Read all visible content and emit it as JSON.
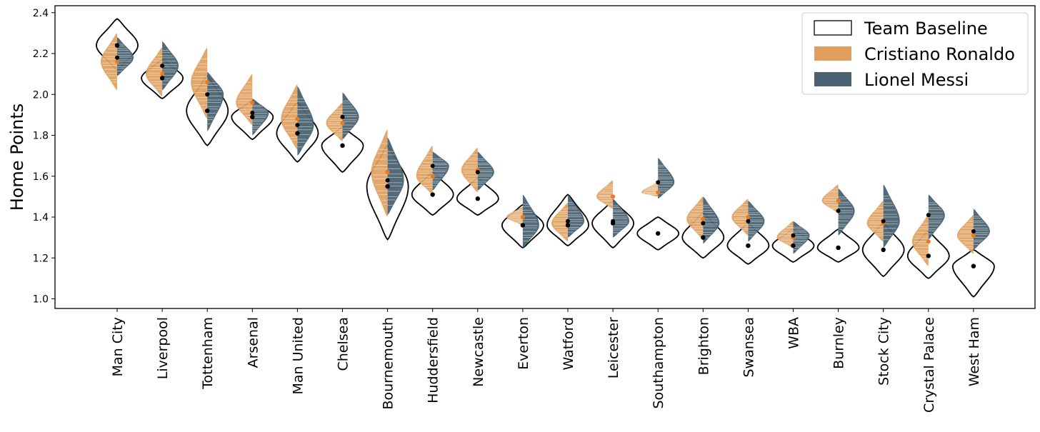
{
  "chart_data": {
    "type": "violin",
    "ylabel": "Home Points",
    "xlabel": "",
    "ylim": [
      0.97,
      2.45
    ],
    "yticks": [
      "1.0",
      "1.2",
      "1.4",
      "1.6",
      "1.8",
      "2.0",
      "2.2",
      "2.4"
    ],
    "categories": [
      "Man City",
      "Liverpool",
      "Tottenham",
      "Arsenal",
      "Man United",
      "Chelsea",
      "Bournemouth",
      "Huddersfield",
      "Newcastle",
      "Everton",
      "Watford",
      "Leicester",
      "Southampton",
      "Brighton",
      "Swansea",
      "WBA",
      "Burnley",
      "Stock City",
      "Crystal Palace",
      "West Ham"
    ],
    "legend_position": "top-right",
    "series": [
      {
        "name": "Team Baseline",
        "color": "#ffffff",
        "edge_color": "#000000",
        "mean": [
          2.24,
          2.08,
          1.92,
          1.89,
          1.81,
          1.75,
          1.55,
          1.51,
          1.49,
          1.36,
          1.36,
          1.37,
          1.32,
          1.3,
          1.26,
          1.26,
          1.25,
          1.24,
          1.21,
          1.16
        ],
        "range": [
          [
            2.12,
            2.37
          ],
          [
            1.98,
            2.17
          ],
          [
            1.75,
            2.09
          ],
          [
            1.78,
            1.97
          ],
          [
            1.67,
            1.96
          ],
          [
            1.62,
            1.84
          ],
          [
            1.29,
            1.75
          ],
          [
            1.41,
            1.62
          ],
          [
            1.41,
            1.59
          ],
          [
            1.25,
            1.46
          ],
          [
            1.26,
            1.51
          ],
          [
            1.25,
            1.48
          ],
          [
            1.24,
            1.4
          ],
          [
            1.2,
            1.42
          ],
          [
            1.17,
            1.37
          ],
          [
            1.18,
            1.34
          ],
          [
            1.18,
            1.34
          ],
          [
            1.11,
            1.37
          ],
          [
            1.1,
            1.33
          ],
          [
            1.01,
            1.24
          ]
        ]
      },
      {
        "name": "Cristiano Ronaldo",
        "color": "#e09f5e",
        "mean": [
          2.16,
          2.1,
          2.06,
          1.96,
          1.88,
          1.86,
          1.62,
          1.6,
          1.63,
          1.4,
          1.37,
          1.5,
          1.52,
          1.39,
          1.4,
          1.3,
          1.48,
          1.37,
          1.28,
          1.31
        ],
        "range": [
          [
            2.02,
            2.3
          ],
          [
            1.99,
            2.23
          ],
          [
            1.88,
            2.23
          ],
          [
            1.85,
            2.1
          ],
          [
            1.73,
            2.05
          ],
          [
            1.77,
            1.96
          ],
          [
            1.4,
            1.83
          ],
          [
            1.51,
            1.75
          ],
          [
            1.52,
            1.74
          ],
          [
            1.36,
            1.45
          ],
          [
            1.28,
            1.47
          ],
          [
            1.44,
            1.58
          ],
          [
            1.5,
            1.57
          ],
          [
            1.29,
            1.5
          ],
          [
            1.31,
            1.49
          ],
          [
            1.25,
            1.38
          ],
          [
            1.42,
            1.56
          ],
          [
            1.28,
            1.48
          ],
          [
            1.16,
            1.41
          ],
          [
            1.22,
            1.41
          ]
        ]
      },
      {
        "name": "Lionel Messi",
        "color": "#4a6272",
        "mean": [
          2.18,
          2.14,
          2.0,
          1.91,
          1.85,
          1.89,
          1.58,
          1.65,
          1.62,
          1.36,
          1.38,
          1.38,
          1.57,
          1.37,
          1.38,
          1.31,
          1.43,
          1.38,
          1.41,
          1.33
        ],
        "range": [
          [
            2.09,
            2.28
          ],
          [
            2.02,
            2.26
          ],
          [
            1.82,
            2.11
          ],
          [
            1.8,
            1.98
          ],
          [
            1.7,
            2.04
          ],
          [
            1.78,
            2.01
          ],
          [
            1.41,
            1.79
          ],
          [
            1.53,
            1.72
          ],
          [
            1.53,
            1.72
          ],
          [
            1.25,
            1.51
          ],
          [
            1.3,
            1.51
          ],
          [
            1.3,
            1.49
          ],
          [
            1.49,
            1.69
          ],
          [
            1.27,
            1.5
          ],
          [
            1.28,
            1.48
          ],
          [
            1.22,
            1.38
          ],
          [
            1.31,
            1.54
          ],
          [
            1.25,
            1.56
          ],
          [
            1.29,
            1.51
          ],
          [
            1.24,
            1.44
          ]
        ]
      }
    ]
  }
}
